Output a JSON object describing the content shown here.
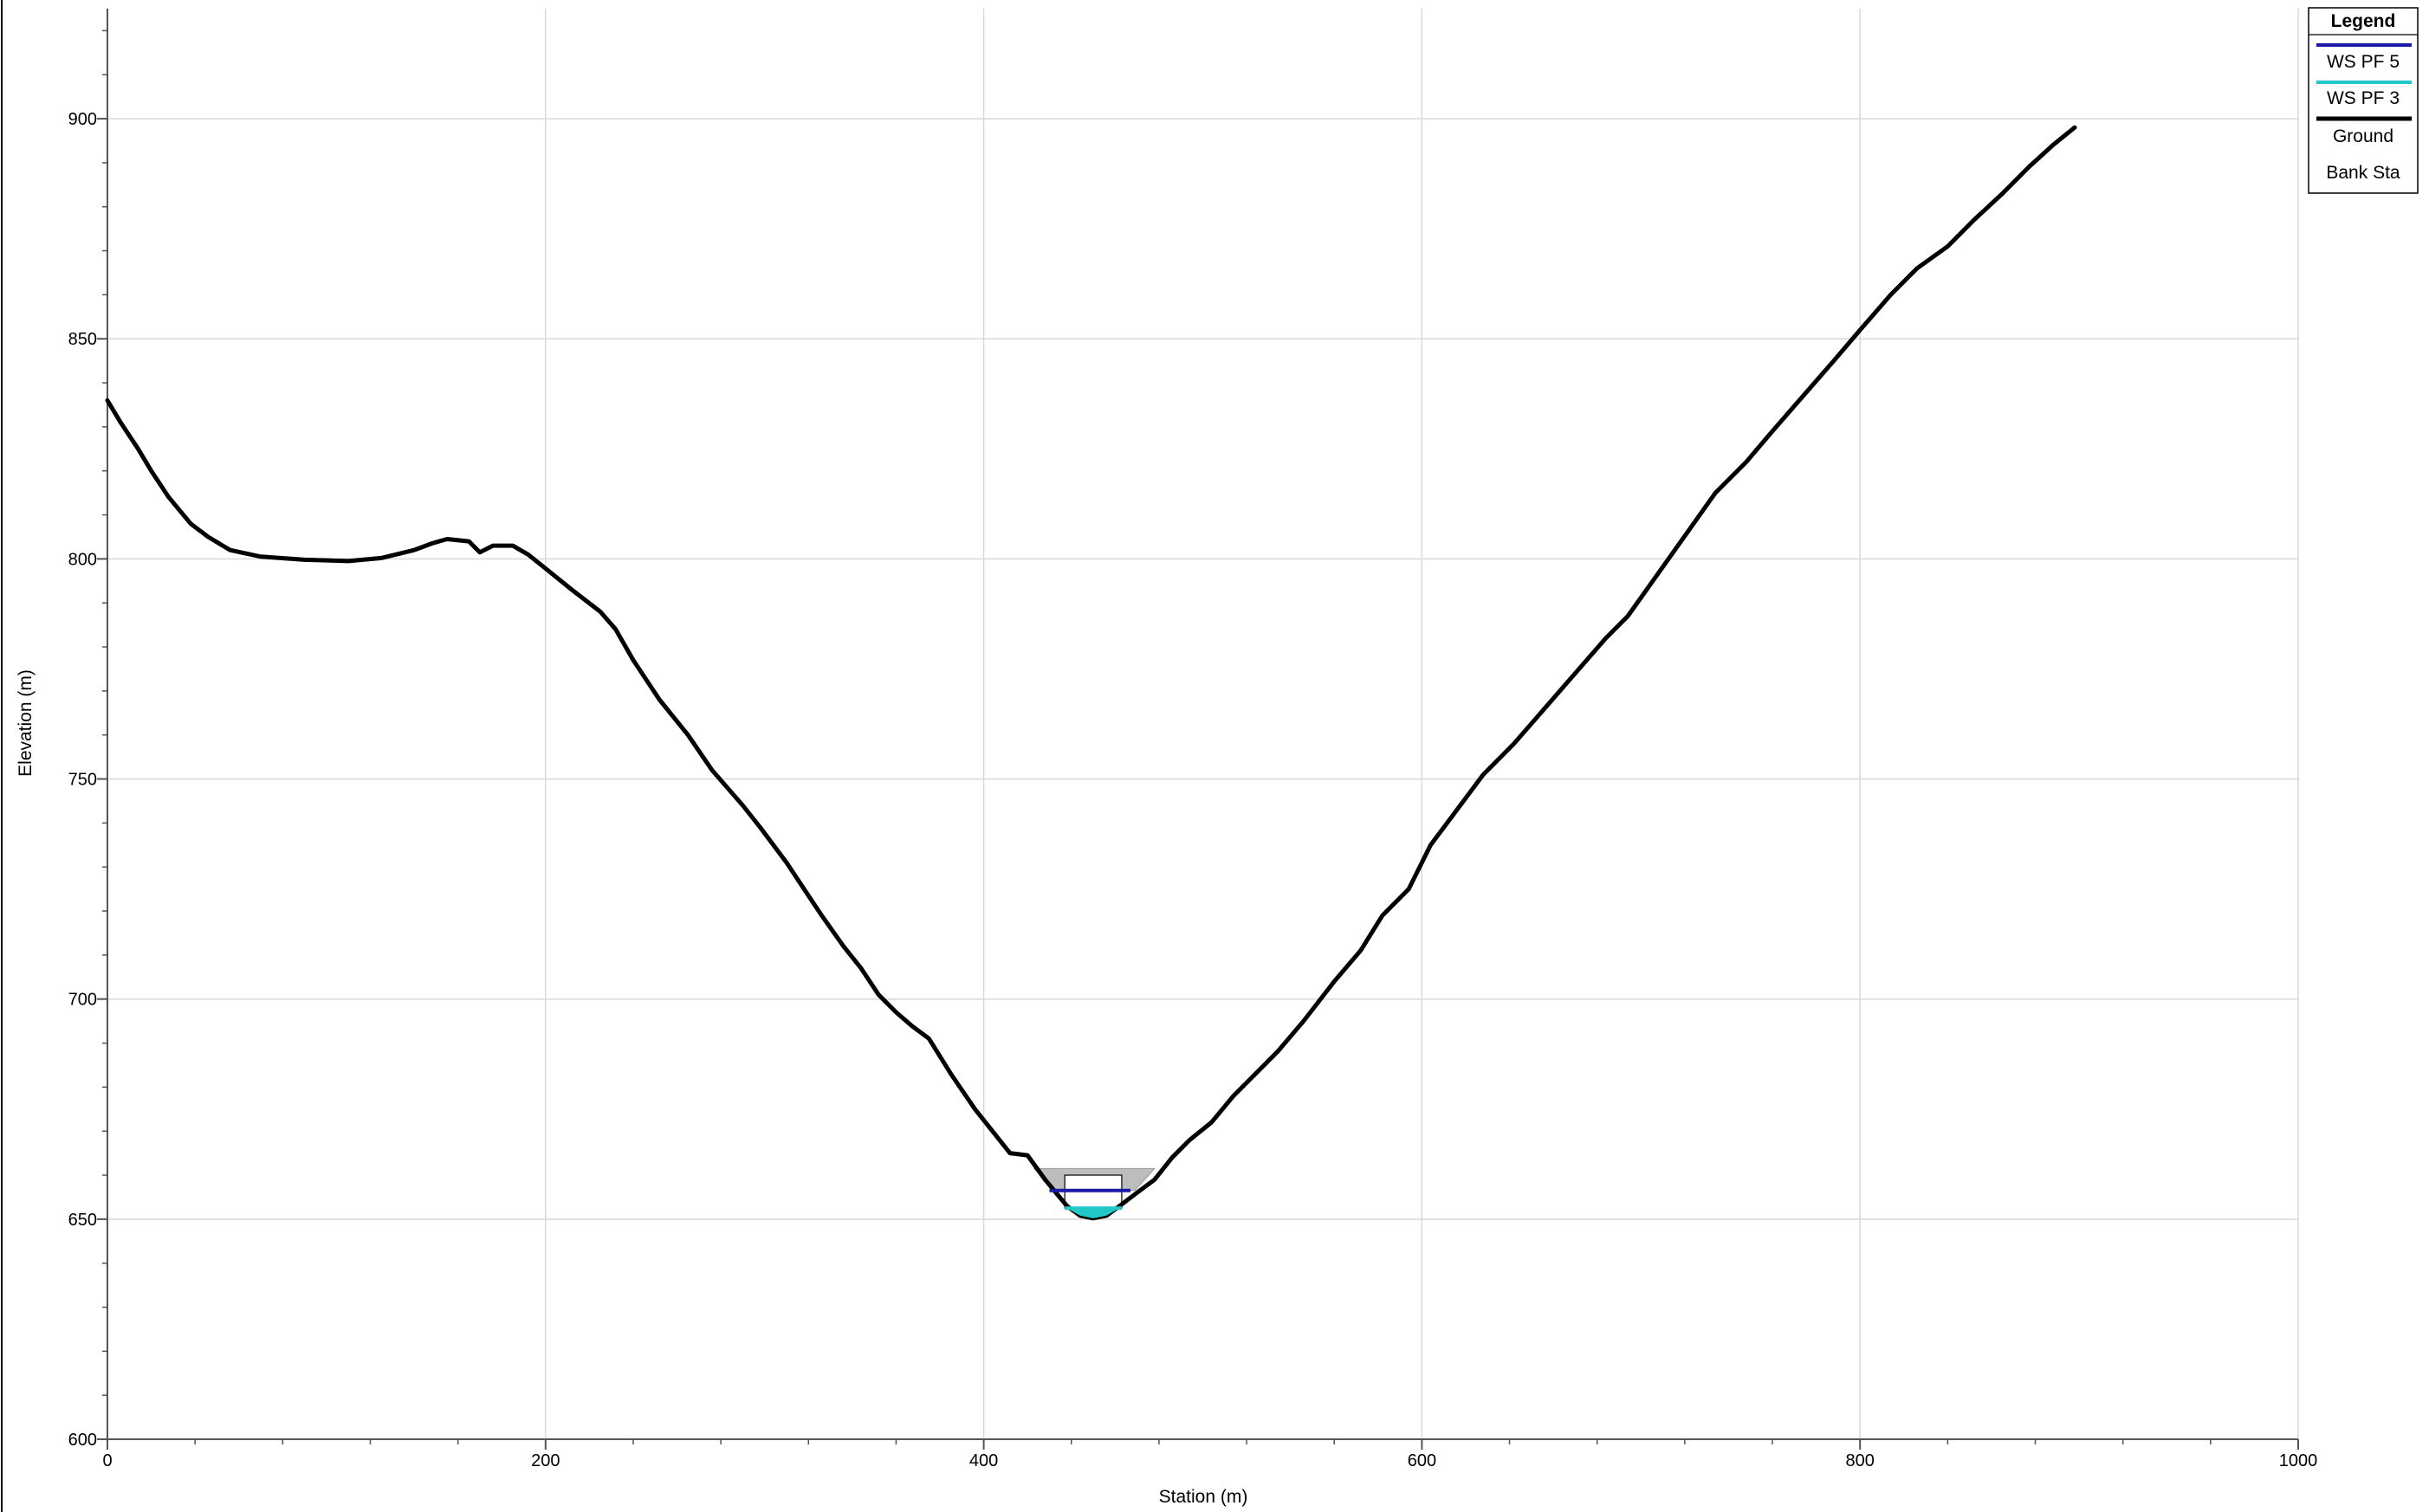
{
  "chart_data": {
    "type": "line",
    "title": "",
    "xlabel": "Station (m)",
    "ylabel": "Elevation (m)",
    "xlim": [
      0,
      1000
    ],
    "ylim": [
      600,
      925
    ],
    "x_ticks": [
      0,
      200,
      400,
      600,
      800,
      1000
    ],
    "y_ticks": [
      600,
      650,
      700,
      750,
      800,
      850,
      900
    ],
    "grid": true,
    "legend_position": "top-right",
    "legend_title": "Legend",
    "colors": {
      "ws_pf5": "#1a1aa8",
      "ws_pf3": "#22c8c8",
      "ground": "#000000",
      "structure_fill": "#bdbdbd",
      "grid": "#d8d8d8"
    },
    "series": [
      {
        "name": "Ground",
        "points": [
          [
            0,
            836
          ],
          [
            6,
            831
          ],
          [
            14,
            825
          ],
          [
            20,
            820
          ],
          [
            28,
            814
          ],
          [
            38,
            808
          ],
          [
            46,
            805
          ],
          [
            56,
            802
          ],
          [
            70,
            800.5
          ],
          [
            90,
            799.8
          ],
          [
            110,
            799.5
          ],
          [
            125,
            800.2
          ],
          [
            140,
            802
          ],
          [
            148,
            803.5
          ],
          [
            155,
            804.5
          ],
          [
            165,
            804
          ],
          [
            170,
            801.5
          ],
          [
            176,
            803
          ],
          [
            185,
            803
          ],
          [
            192,
            801
          ],
          [
            202,
            797
          ],
          [
            212,
            793
          ],
          [
            225,
            788
          ],
          [
            232,
            784
          ],
          [
            240,
            777
          ],
          [
            252,
            768
          ],
          [
            265,
            760
          ],
          [
            276,
            752
          ],
          [
            290,
            744
          ],
          [
            298,
            739
          ],
          [
            310,
            731
          ],
          [
            318,
            725
          ],
          [
            326,
            719
          ],
          [
            336,
            712
          ],
          [
            344,
            707
          ],
          [
            352,
            701
          ],
          [
            360,
            697
          ],
          [
            367,
            694
          ],
          [
            375,
            691
          ],
          [
            385,
            683
          ],
          [
            396,
            675
          ],
          [
            404,
            670
          ],
          [
            412,
            665
          ],
          [
            420,
            664.5
          ],
          [
            428,
            659
          ],
          [
            438,
            653
          ],
          [
            444,
            650.8
          ],
          [
            450,
            650.2
          ],
          [
            456,
            650.8
          ],
          [
            462,
            653
          ],
          [
            470,
            656
          ],
          [
            478,
            659
          ],
          [
            486,
            664
          ],
          [
            494,
            668
          ],
          [
            504,
            672
          ],
          [
            514,
            678
          ],
          [
            524,
            683
          ],
          [
            534,
            688
          ],
          [
            546,
            695
          ],
          [
            560,
            704
          ],
          [
            572,
            711
          ],
          [
            582,
            719
          ],
          [
            594,
            725
          ],
          [
            604,
            735
          ],
          [
            616,
            743
          ],
          [
            628,
            751
          ],
          [
            642,
            758
          ],
          [
            656,
            766
          ],
          [
            670,
            774
          ],
          [
            684,
            782
          ],
          [
            694,
            787
          ],
          [
            704,
            794
          ],
          [
            714,
            801
          ],
          [
            724,
            808
          ],
          [
            734,
            815
          ],
          [
            748,
            822
          ],
          [
            760,
            829
          ],
          [
            774,
            837
          ],
          [
            788,
            845
          ],
          [
            800,
            852
          ],
          [
            814,
            860
          ],
          [
            826,
            866
          ],
          [
            840,
            871
          ],
          [
            852,
            877
          ],
          [
            865,
            883
          ],
          [
            877,
            889
          ],
          [
            888,
            894
          ],
          [
            898,
            898
          ]
        ]
      },
      {
        "name": "WS PF 5",
        "elevation": 656.5,
        "station_range": [
          430,
          467
        ]
      },
      {
        "name": "WS PF 3",
        "elevation": 652.5,
        "station_range": [
          437,
          463
        ]
      }
    ],
    "structure": {
      "deck_top": 661.5,
      "deck_bottom": 656.5,
      "deck_station_range": [
        423,
        478
      ],
      "opening_top": 660,
      "opening_bottom": 652.5,
      "opening_station_range": [
        437,
        463
      ]
    },
    "legend": [
      {
        "label": "WS PF 5",
        "color": "#1a1aa8"
      },
      {
        "label": "WS PF 3",
        "color": "#22c8c8"
      },
      {
        "label": "Ground",
        "color": "#000000"
      },
      {
        "label": "Bank Sta",
        "color": ""
      }
    ]
  }
}
